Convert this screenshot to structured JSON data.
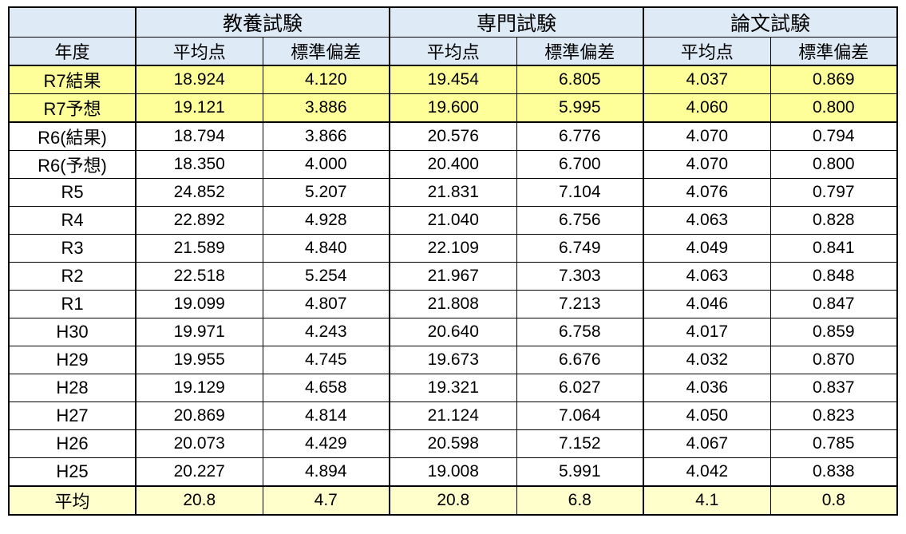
{
  "table": {
    "corner_label": "",
    "year_header": "年度",
    "header_groups": [
      "教養試験",
      "専門試験",
      "論文試験"
    ],
    "sub_headers": [
      "平均点",
      "標準偏差"
    ],
    "colors": {
      "header_bg": "#DEEBF7",
      "highlight_yellow": "#FFFF99",
      "average_yellow": "#FFFFCC",
      "border": "#000000",
      "text": "#000000"
    },
    "rows": [
      {
        "year": "R7結果",
        "highlight": "yellow",
        "values": [
          "18.924",
          "4.120",
          "19.454",
          "6.805",
          "4.037",
          "0.869"
        ]
      },
      {
        "year": "R7予想",
        "highlight": "yellow",
        "values": [
          "19.121",
          "3.886",
          "19.600",
          "5.995",
          "4.060",
          "0.800"
        ]
      },
      {
        "year": "R6(結果)",
        "highlight": "none",
        "values": [
          "18.794",
          "3.866",
          "20.576",
          "6.776",
          "4.070",
          "0.794"
        ]
      },
      {
        "year": "R6(予想)",
        "highlight": "none",
        "values": [
          "18.350",
          "4.000",
          "20.400",
          "6.700",
          "4.070",
          "0.800"
        ]
      },
      {
        "year": "R5",
        "highlight": "none",
        "values": [
          "24.852",
          "5.207",
          "21.831",
          "7.104",
          "4.076",
          "0.797"
        ]
      },
      {
        "year": "R4",
        "highlight": "none",
        "values": [
          "22.892",
          "4.928",
          "21.040",
          "6.756",
          "4.063",
          "0.828"
        ]
      },
      {
        "year": "R3",
        "highlight": "none",
        "values": [
          "21.589",
          "4.840",
          "22.109",
          "6.749",
          "4.049",
          "0.841"
        ]
      },
      {
        "year": "R2",
        "highlight": "none",
        "values": [
          "22.518",
          "5.254",
          "21.967",
          "7.303",
          "4.063",
          "0.848"
        ]
      },
      {
        "year": "R1",
        "highlight": "none",
        "values": [
          "19.099",
          "4.807",
          "21.808",
          "7.213",
          "4.046",
          "0.847"
        ]
      },
      {
        "year": "H30",
        "highlight": "none",
        "values": [
          "19.971",
          "4.243",
          "20.640",
          "6.758",
          "4.017",
          "0.859"
        ]
      },
      {
        "year": "H29",
        "highlight": "none",
        "values": [
          "19.955",
          "4.745",
          "19.673",
          "6.676",
          "4.032",
          "0.870"
        ]
      },
      {
        "year": "H28",
        "highlight": "none",
        "values": [
          "19.129",
          "4.658",
          "19.321",
          "6.027",
          "4.036",
          "0.837"
        ]
      },
      {
        "year": "H27",
        "highlight": "none",
        "values": [
          "20.869",
          "4.814",
          "21.124",
          "7.064",
          "4.050",
          "0.823"
        ]
      },
      {
        "year": "H26",
        "highlight": "none",
        "values": [
          "20.073",
          "4.429",
          "20.598",
          "7.152",
          "4.067",
          "0.785"
        ]
      },
      {
        "year": "H25",
        "highlight": "none",
        "values": [
          "20.227",
          "4.894",
          "19.008",
          "5.991",
          "4.042",
          "0.838"
        ]
      },
      {
        "year": "平均",
        "highlight": "pale",
        "values": [
          "20.8",
          "4.7",
          "20.8",
          "6.8",
          "4.1",
          "0.8"
        ]
      }
    ]
  },
  "chart_data": {
    "type": "table",
    "title": "",
    "column_groups": [
      "教養試験",
      "専門試験",
      "論文試験"
    ],
    "columns": [
      "年度",
      "教養試験 平均点",
      "教養試験 標準偏差",
      "専門試験 平均点",
      "専門試験 標準偏差",
      "論文試験 平均点",
      "論文試験 標準偏差"
    ],
    "rows": [
      [
        "R7結果",
        18.924,
        4.12,
        19.454,
        6.805,
        4.037,
        0.869
      ],
      [
        "R7予想",
        19.121,
        3.886,
        19.6,
        5.995,
        4.06,
        0.8
      ],
      [
        "R6(結果)",
        18.794,
        3.866,
        20.576,
        6.776,
        4.07,
        0.794
      ],
      [
        "R6(予想)",
        18.35,
        4.0,
        20.4,
        6.7,
        4.07,
        0.8
      ],
      [
        "R5",
        24.852,
        5.207,
        21.831,
        7.104,
        4.076,
        0.797
      ],
      [
        "R4",
        22.892,
        4.928,
        21.04,
        6.756,
        4.063,
        0.828
      ],
      [
        "R3",
        21.589,
        4.84,
        22.109,
        6.749,
        4.049,
        0.841
      ],
      [
        "R2",
        22.518,
        5.254,
        21.967,
        7.303,
        4.063,
        0.848
      ],
      [
        "R1",
        19.099,
        4.807,
        21.808,
        7.213,
        4.046,
        0.847
      ],
      [
        "H30",
        19.971,
        4.243,
        20.64,
        6.758,
        4.017,
        0.859
      ],
      [
        "H29",
        19.955,
        4.745,
        19.673,
        6.676,
        4.032,
        0.87
      ],
      [
        "H28",
        19.129,
        4.658,
        19.321,
        6.027,
        4.036,
        0.837
      ],
      [
        "H27",
        20.869,
        4.814,
        21.124,
        7.064,
        4.05,
        0.823
      ],
      [
        "H26",
        20.073,
        4.429,
        20.598,
        7.152,
        4.067,
        0.785
      ],
      [
        "H25",
        20.227,
        4.894,
        19.008,
        5.991,
        4.042,
        0.838
      ],
      [
        "平均",
        20.8,
        4.7,
        20.8,
        6.8,
        4.1,
        0.8
      ]
    ]
  }
}
